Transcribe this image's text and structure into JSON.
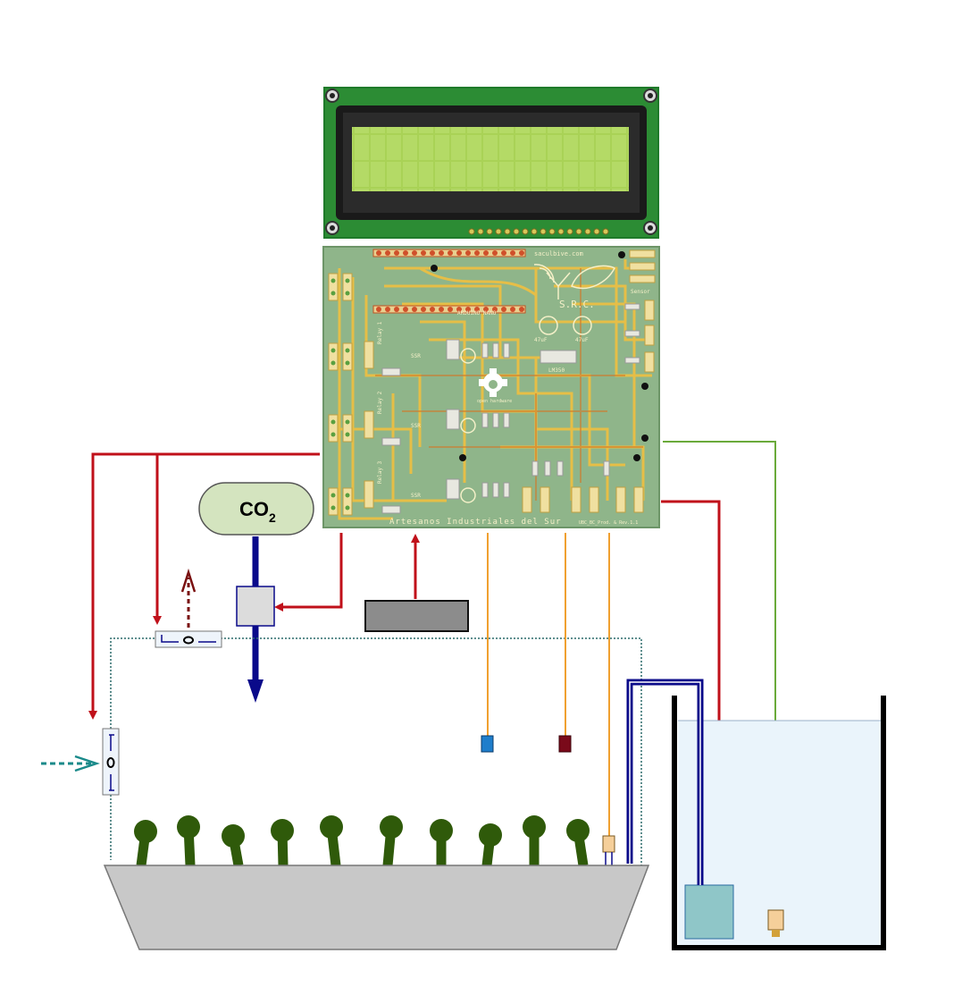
{
  "co2": {
    "main": "CO",
    "sub": "2"
  },
  "pcb": {
    "website": "saculbive.com",
    "footer": "Artesanos Industriales del Sur",
    "version": "UBC_BC_Prod. & Rev.1.1",
    "brand": "S.R.C.",
    "arduino": "ARDUINO NANO",
    "opensource": "open hardware",
    "sensor_label": "Sensor",
    "relays": [
      "Relay 1",
      "Relay 2",
      "Relay 3"
    ],
    "ssr": [
      "SSR",
      "SSR",
      "SSR"
    ],
    "caps": [
      "47uF",
      "47uF"
    ],
    "reg": "LM350"
  },
  "colors": {
    "power_line": "#c0101a",
    "co2_line": "#0a0a8a",
    "sensor_line": "#f0a030",
    "level_line": "#6aaa3a",
    "pcb_green": "#8fb58a",
    "trace": "#f0c040",
    "lcd_screen": "#a9d256",
    "plant": "#2f5a0a",
    "tray": "#c8c8c8",
    "water": "#eaf4fb",
    "pump": "#8fc6c8"
  },
  "icons": [
    "lcd-display-icon",
    "pcb-board-icon",
    "co2-tank-icon",
    "valve-icon",
    "pump-icon",
    "plant-icon",
    "sensor-probe-icon",
    "water-tank-icon"
  ]
}
